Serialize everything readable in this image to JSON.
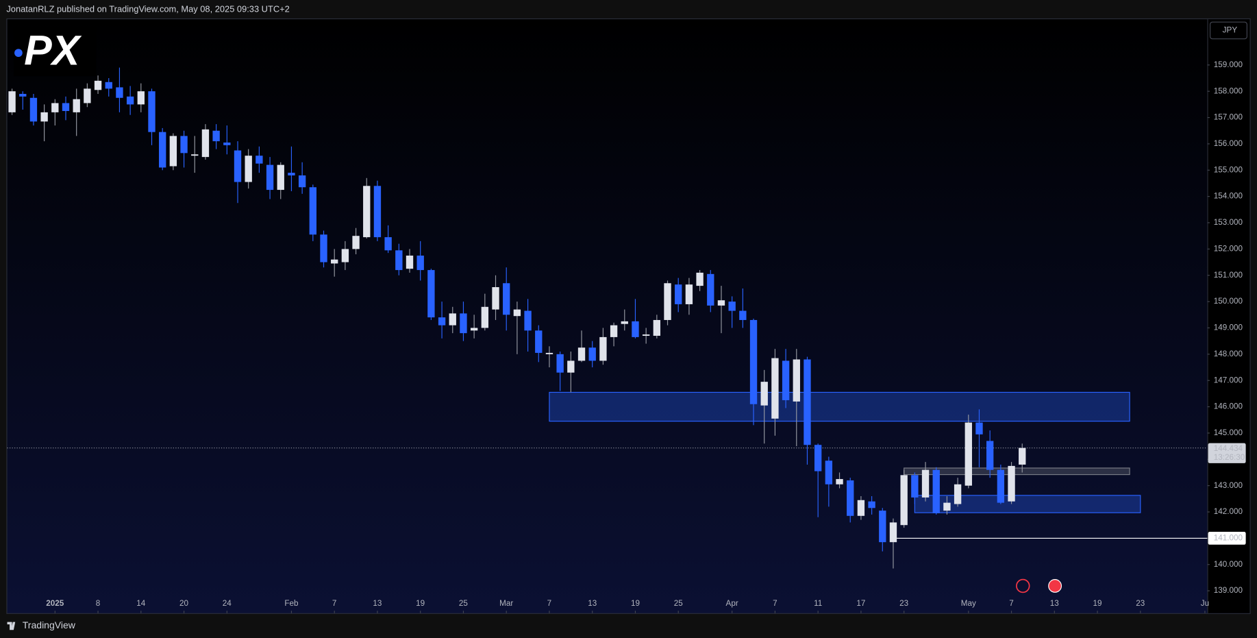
{
  "header": {
    "text": "JonatanRLZ published on TradingView.com, May 08, 2025 09:33 UTC+2"
  },
  "footer": {
    "brand": "TradingView"
  },
  "currency_button": "JPY",
  "logo": "PX",
  "chart_data": {
    "type": "candlestick",
    "x": [
      "2024-12-26",
      "2024-12-27",
      "2024-12-30",
      "2024-12-31",
      "2025-01-02",
      "2025-01-03",
      "2025-01-06",
      "2025-01-07",
      "2025-01-08",
      "2025-01-09",
      "2025-01-10",
      "2025-01-13",
      "2025-01-14",
      "2025-01-15",
      "2025-01-16",
      "2025-01-17",
      "2025-01-20",
      "2025-01-21",
      "2025-01-22",
      "2025-01-23",
      "2025-01-24",
      "2025-01-27",
      "2025-01-28",
      "2025-01-29",
      "2025-01-30",
      "2025-01-31",
      "2025-02-03",
      "2025-02-04",
      "2025-02-05",
      "2025-02-06",
      "2025-02-07",
      "2025-02-10",
      "2025-02-11",
      "2025-02-12",
      "2025-02-13",
      "2025-02-14",
      "2025-02-17",
      "2025-02-18",
      "2025-02-19",
      "2025-02-20",
      "2025-02-21",
      "2025-02-24",
      "2025-02-25",
      "2025-02-26",
      "2025-02-27",
      "2025-02-28",
      "2025-03-03",
      "2025-03-04",
      "2025-03-05",
      "2025-03-06",
      "2025-03-07",
      "2025-03-10",
      "2025-03-11",
      "2025-03-12",
      "2025-03-13",
      "2025-03-14",
      "2025-03-17",
      "2025-03-18",
      "2025-03-19",
      "2025-03-20",
      "2025-03-21",
      "2025-03-24",
      "2025-03-25",
      "2025-03-26",
      "2025-03-27",
      "2025-03-28",
      "2025-03-31",
      "2025-04-01",
      "2025-04-02",
      "2025-04-03",
      "2025-04-04",
      "2025-04-07",
      "2025-04-08",
      "2025-04-09",
      "2025-04-10",
      "2025-04-11",
      "2025-04-14",
      "2025-04-15",
      "2025-04-16",
      "2025-04-17",
      "2025-04-18",
      "2025-04-21",
      "2025-04-22",
      "2025-04-23",
      "2025-04-24",
      "2025-04-25",
      "2025-04-28",
      "2025-04-29",
      "2025-04-30",
      "2025-05-01",
      "2025-05-02",
      "2025-05-05",
      "2025-05-06",
      "2025-05-07",
      "2025-05-08"
    ],
    "open": [
      157.2,
      157.9,
      157.75,
      156.85,
      157.2,
      157.55,
      157.2,
      157.55,
      158.05,
      158.35,
      158.15,
      157.8,
      157.5,
      158.0,
      156.45,
      155.15,
      156.3,
      155.55,
      155.5,
      156.5,
      156.05,
      155.75,
      154.55,
      155.55,
      155.2,
      154.25,
      154.9,
      154.8,
      154.35,
      152.55,
      151.45,
      151.5,
      152.0,
      152.45,
      154.4,
      152.45,
      151.95,
      151.25,
      151.75,
      151.2,
      149.4,
      149.1,
      149.55,
      148.9,
      149.0,
      149.7,
      150.7,
      149.45,
      149.65,
      148.9,
      148.0,
      148.0,
      147.3,
      147.75,
      148.25,
      147.75,
      148.65,
      149.15,
      149.25,
      148.7,
      148.7,
      149.3,
      150.65,
      149.9,
      150.6,
      151.05,
      149.85,
      150.0,
      149.65,
      149.3,
      146.05,
      145.55,
      147.75,
      146.2,
      147.8,
      144.55,
      143.95,
      143.05,
      143.2,
      141.85,
      142.4,
      142.05,
      140.85,
      141.5,
      143.4,
      142.55,
      143.6,
      142.05,
      142.3,
      143.0,
      145.4,
      144.7,
      143.6,
      142.4,
      143.8
    ],
    "high": [
      158.1,
      158.0,
      157.9,
      157.5,
      157.7,
      157.8,
      158.1,
      158.3,
      158.6,
      158.5,
      158.9,
      158.2,
      158.3,
      158.1,
      156.6,
      156.4,
      156.5,
      156.3,
      156.75,
      156.75,
      156.7,
      156.1,
      155.8,
      155.9,
      155.5,
      155.3,
      155.9,
      155.3,
      154.45,
      152.7,
      152.0,
      152.3,
      152.8,
      154.7,
      154.6,
      152.9,
      152.2,
      152.0,
      152.3,
      151.25,
      150.0,
      149.8,
      150.0,
      149.5,
      150.3,
      151.0,
      151.3,
      150.0,
      150.1,
      149.1,
      148.3,
      148.1,
      148.1,
      148.9,
      148.5,
      149.0,
      149.2,
      149.7,
      150.1,
      149.0,
      149.5,
      150.8,
      150.9,
      150.9,
      151.2,
      151.2,
      150.6,
      150.2,
      150.5,
      149.35,
      147.4,
      148.2,
      148.2,
      148.2,
      147.9,
      144.6,
      144.1,
      143.5,
      143.3,
      142.6,
      142.6,
      142.15,
      141.75,
      143.6,
      143.5,
      143.9,
      143.7,
      142.6,
      143.3,
      145.7,
      145.9,
      145.1,
      143.8,
      143.9,
      144.6
    ],
    "low": [
      157.1,
      157.3,
      156.7,
      156.1,
      156.7,
      156.9,
      156.3,
      157.4,
      157.9,
      157.8,
      157.2,
      157.1,
      157.2,
      155.95,
      155.0,
      155.0,
      155.1,
      154.9,
      155.4,
      155.8,
      155.6,
      153.75,
      154.3,
      154.9,
      153.9,
      153.9,
      154.2,
      154.1,
      152.3,
      151.3,
      150.95,
      151.2,
      151.8,
      152.4,
      152.3,
      151.85,
      151.0,
      151.1,
      150.8,
      149.3,
      148.6,
      148.8,
      148.5,
      148.6,
      148.9,
      149.3,
      148.9,
      148.0,
      148.1,
      147.7,
      147.5,
      146.6,
      146.55,
      147.7,
      147.5,
      147.6,
      148.3,
      148.9,
      148.6,
      148.4,
      148.6,
      149.1,
      149.6,
      149.5,
      150.4,
      149.6,
      148.8,
      149.0,
      149.0,
      145.3,
      144.6,
      144.9,
      145.95,
      144.5,
      143.8,
      141.8,
      142.2,
      142.9,
      141.6,
      141.7,
      141.9,
      140.5,
      139.85,
      141.4,
      142.3,
      142.4,
      141.9,
      141.9,
      142.2,
      142.9,
      143.7,
      143.3,
      142.3,
      142.3,
      143.5
    ],
    "close": [
      158.0,
      157.8,
      156.85,
      157.2,
      157.55,
      157.25,
      157.7,
      158.1,
      158.4,
      158.1,
      157.75,
      157.5,
      158.0,
      156.45,
      155.1,
      156.3,
      155.65,
      155.6,
      156.55,
      156.1,
      155.95,
      154.55,
      155.55,
      155.25,
      154.25,
      155.2,
      154.8,
      154.35,
      152.55,
      151.5,
      151.6,
      152.0,
      152.5,
      154.4,
      152.45,
      151.95,
      151.2,
      151.75,
      151.2,
      149.4,
      149.1,
      149.55,
      148.8,
      149.0,
      149.8,
      150.55,
      149.5,
      149.7,
      148.9,
      148.05,
      148.05,
      147.3,
      147.75,
      148.25,
      147.75,
      148.65,
      149.1,
      149.25,
      148.65,
      148.75,
      149.3,
      150.7,
      149.9,
      150.65,
      151.1,
      149.85,
      150.05,
      149.65,
      149.3,
      146.1,
      146.95,
      147.85,
      146.25,
      147.8,
      144.55,
      143.55,
      143.05,
      143.25,
      141.85,
      142.45,
      142.15,
      140.85,
      141.6,
      143.4,
      142.55,
      143.6,
      141.95,
      142.35,
      143.05,
      145.4,
      144.95,
      143.6,
      142.35,
      143.75,
      144.434
    ],
    "up_color": "#e0e3eb",
    "down_color": "#2962ff",
    "xlim": [
      "2024-12-26",
      "2025-06-02"
    ],
    "ylim": [
      138.15,
      160.74
    ],
    "yticks": [
      {
        "value": 139,
        "label": "139.000"
      },
      {
        "value": 140,
        "label": "140.000"
      },
      {
        "value": 141,
        "label": "141.000"
      },
      {
        "value": 142,
        "label": "142.000"
      },
      {
        "value": 143,
        "label": "143.000"
      },
      {
        "value": 144,
        "label": "144.000"
      },
      {
        "value": 145,
        "label": "145.000"
      },
      {
        "value": 146,
        "label": "146.000"
      },
      {
        "value": 147,
        "label": "147.000"
      },
      {
        "value": 148,
        "label": "148.000"
      },
      {
        "value": 149,
        "label": "149.000"
      },
      {
        "value": 150,
        "label": "150.000"
      },
      {
        "value": 151,
        "label": "151.000"
      },
      {
        "value": 152,
        "label": "152.000"
      },
      {
        "value": 153,
        "label": "153.000"
      },
      {
        "value": 154,
        "label": "154.000"
      },
      {
        "value": 155,
        "label": "155.000"
      },
      {
        "value": 156,
        "label": "156.000"
      },
      {
        "value": 157,
        "label": "157.000"
      },
      {
        "value": 158,
        "label": "158.000"
      },
      {
        "value": 159,
        "label": "159.000"
      }
    ],
    "xticks": [
      {
        "value": "2025-01-02",
        "label": "2025"
      },
      {
        "value": "2025-01-08",
        "label": "8"
      },
      {
        "value": "2025-01-14",
        "label": "14"
      },
      {
        "value": "2025-01-20",
        "label": "20"
      },
      {
        "value": "2025-01-24",
        "label": "24"
      },
      {
        "value": "2025-02-03",
        "label": "Feb"
      },
      {
        "value": "2025-02-07",
        "label": "7"
      },
      {
        "value": "2025-02-13",
        "label": "13"
      },
      {
        "value": "2025-02-19",
        "label": "19"
      },
      {
        "value": "2025-02-25",
        "label": "25"
      },
      {
        "value": "2025-03-03",
        "label": "Mar"
      },
      {
        "value": "2025-03-07",
        "label": "7"
      },
      {
        "value": "2025-03-13",
        "label": "13"
      },
      {
        "value": "2025-03-19",
        "label": "19"
      },
      {
        "value": "2025-03-25",
        "label": "25"
      },
      {
        "value": "2025-04-01",
        "label": "Apr"
      },
      {
        "value": "2025-04-07",
        "label": "7"
      },
      {
        "value": "2025-04-11",
        "label": "11"
      },
      {
        "value": "2025-04-17",
        "label": "17"
      },
      {
        "value": "2025-04-23",
        "label": "23"
      },
      {
        "value": "2025-05-01",
        "label": "May"
      },
      {
        "value": "2025-05-07",
        "label": "7"
      },
      {
        "value": "2025-05-13",
        "label": "13"
      },
      {
        "value": "2025-05-19",
        "label": "19"
      },
      {
        "value": "2025-05-23",
        "label": "23"
      },
      {
        "value": "2025-06-02",
        "label": "Ju"
      }
    ],
    "last_price": 144.434,
    "countdown": "13:26:30",
    "hline": {
      "value": 141,
      "from": "2025-04-22",
      "color": "#ffffff"
    },
    "zones": [
      {
        "x": [
          "2025-03-07",
          "2025-05-22"
        ],
        "y": [
          145.45,
          146.55
        ],
        "color": "#2962ff"
      },
      {
        "x": [
          "2025-04-23",
          "2025-05-22"
        ],
        "y": [
          143.42,
          143.67
        ],
        "color": "#787b86"
      },
      {
        "x": [
          "2025-04-24",
          "2025-05-23"
        ],
        "y": [
          141.97,
          142.63
        ],
        "color": "#2962ff"
      }
    ]
  }
}
